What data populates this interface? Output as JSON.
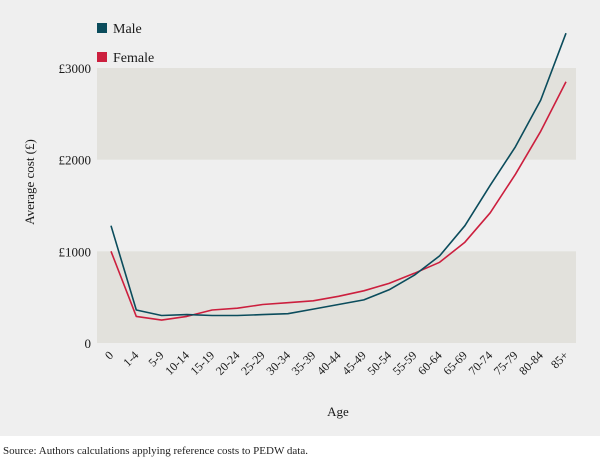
{
  "chart_data": {
    "type": "line",
    "title": "",
    "xlabel": "Age",
    "ylabel": "Average cost (£)",
    "categories": [
      "0",
      "1-4",
      "5-9",
      "10-14",
      "15-19",
      "20-24",
      "25-29",
      "30-34",
      "35-39",
      "40-44",
      "45-49",
      "50-54",
      "55-59",
      "60-64",
      "65-69",
      "70-74",
      "75-79",
      "80-84",
      "85+"
    ],
    "y_ticks": [
      0,
      1000,
      2000,
      3000
    ],
    "y_tick_labels": [
      "0",
      "£1000",
      "£2000",
      "£3000"
    ],
    "ylim": [
      0,
      3400
    ],
    "grid": false,
    "bands": [
      {
        "from": 0,
        "to": 1000,
        "color": "#e2e1dc"
      },
      {
        "from": 2000,
        "to": 3000,
        "color": "#e2e1dc"
      }
    ],
    "legend_position": "top-left",
    "series": [
      {
        "name": "Male",
        "color": "#0b4c5c",
        "values": [
          1280,
          360,
          300,
          310,
          300,
          300,
          310,
          320,
          370,
          420,
          470,
          580,
          740,
          950,
          1280,
          1720,
          2140,
          2650,
          3380
        ]
      },
      {
        "name": "Female",
        "color": "#cc1f3e",
        "values": [
          1000,
          290,
          250,
          290,
          360,
          380,
          420,
          440,
          460,
          510,
          570,
          650,
          760,
          880,
          1100,
          1420,
          1840,
          2310,
          2850
        ]
      }
    ]
  },
  "source_note": "Source: Authors calculations applying reference costs to PEDW data."
}
